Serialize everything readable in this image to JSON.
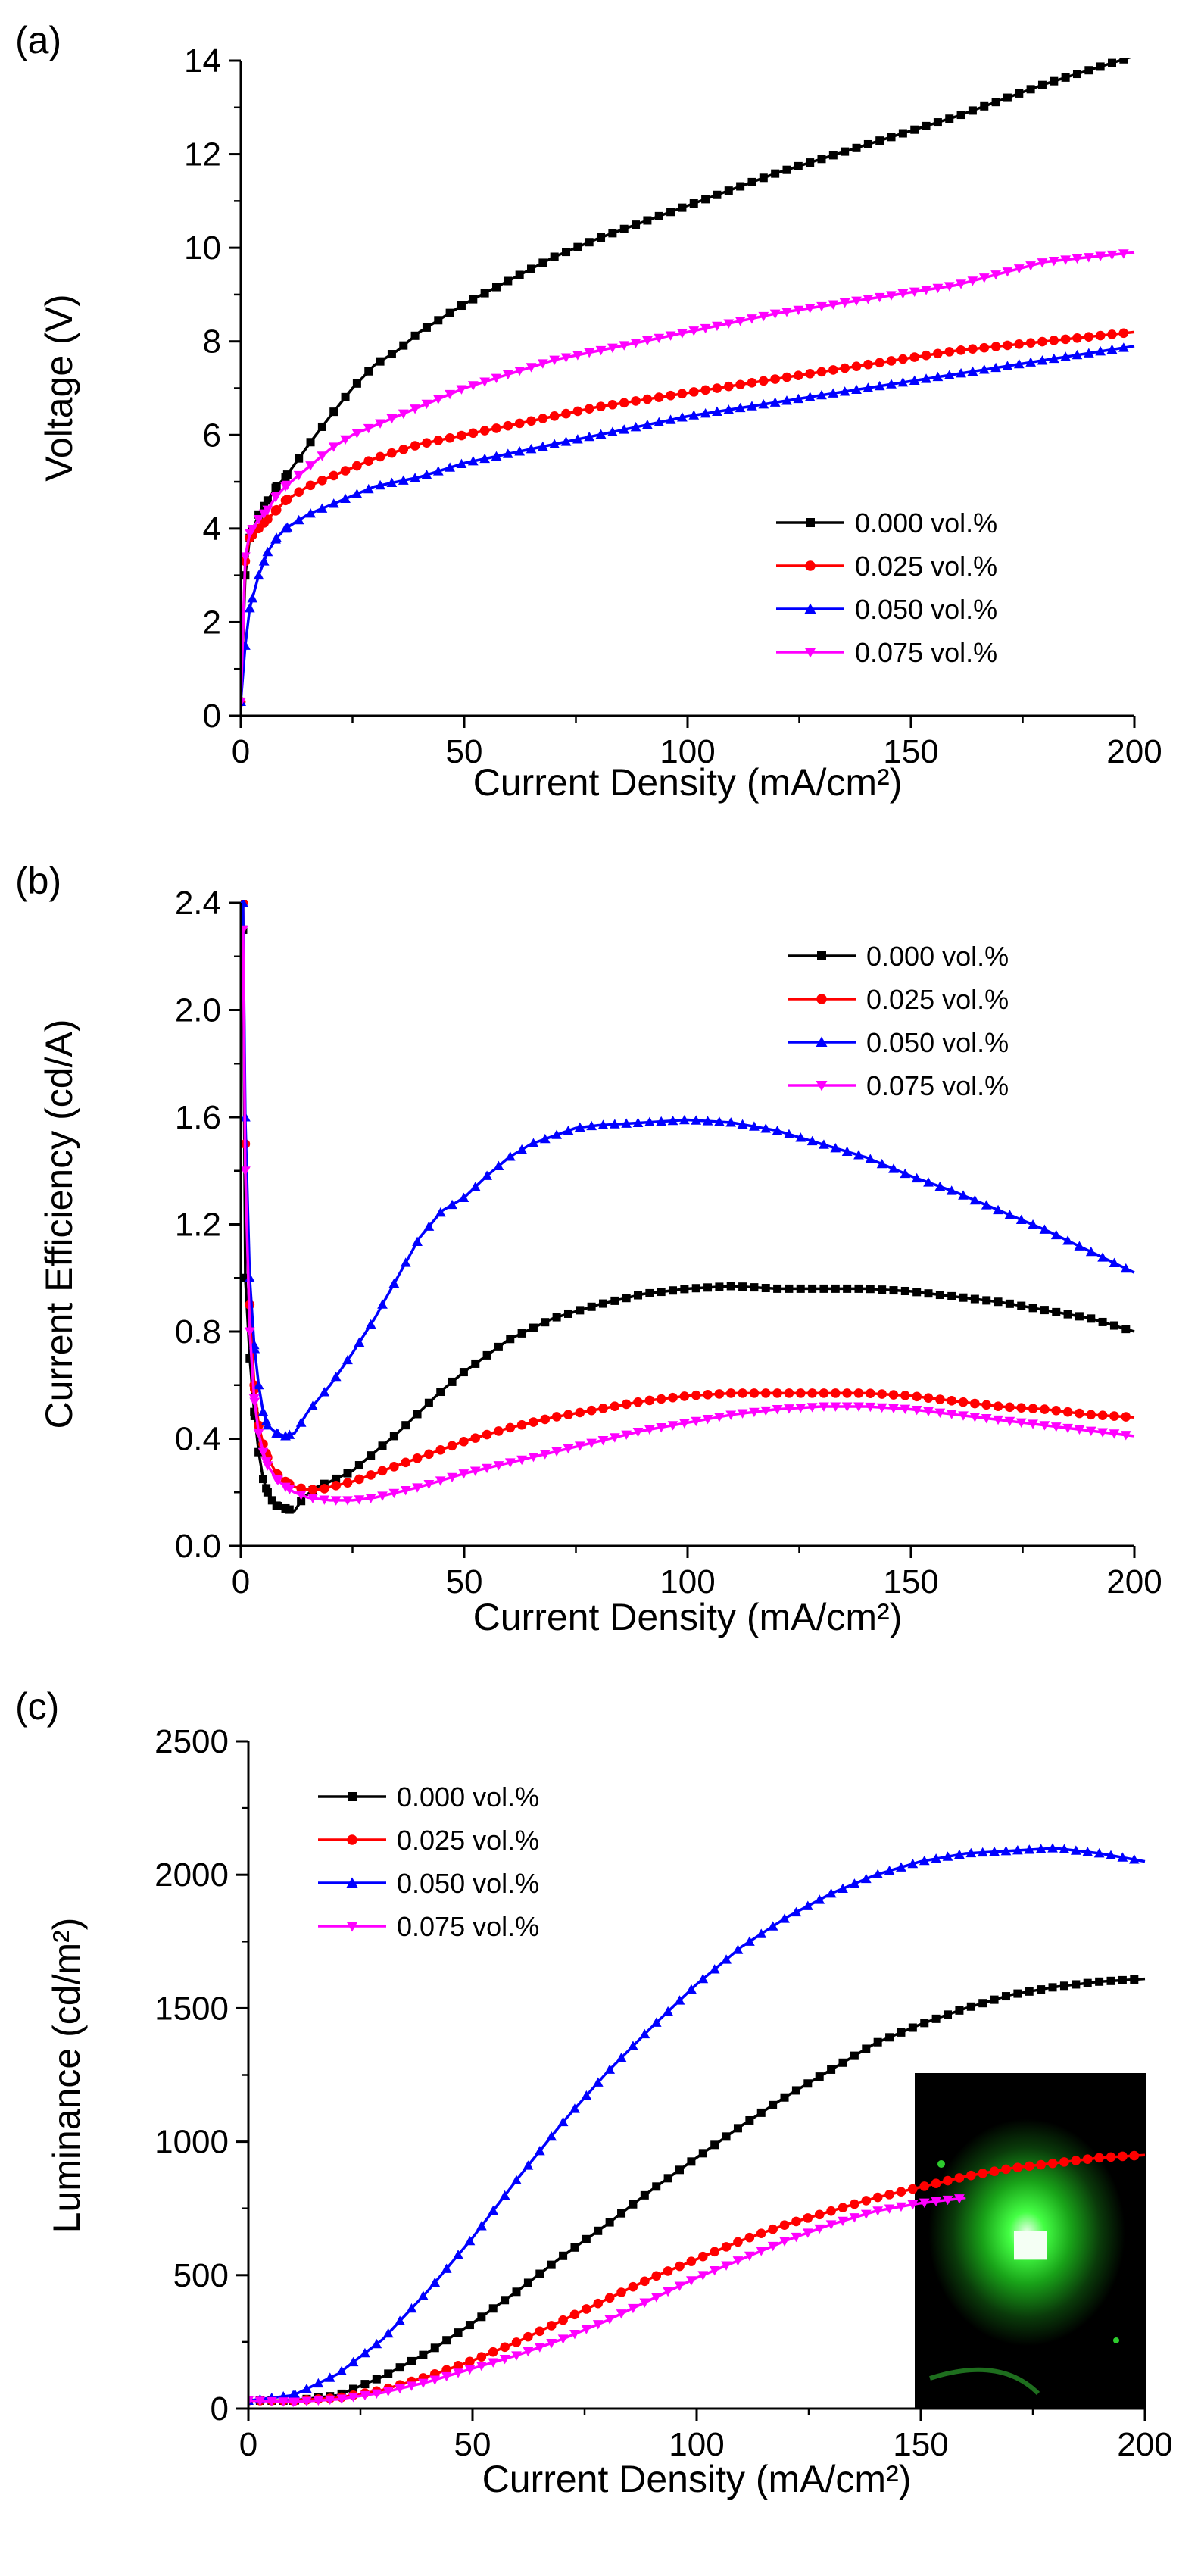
{
  "figure": {
    "inset_photo": "green-electroluminescence-device-photo"
  },
  "chart_data": [
    {
      "panel_label": "(a)",
      "type": "line",
      "xlabel": "Current Density (mA/cm²)",
      "ylabel": "Voltage (V)",
      "xlim": [
        0,
        200
      ],
      "ylim": [
        0,
        14
      ],
      "x_ticks": [
        "0",
        "50",
        "100",
        "150",
        "200"
      ],
      "y_ticks": [
        "0",
        "2",
        "4",
        "6",
        "8",
        "10",
        "12",
        "14"
      ],
      "legend_position": "bottom-right",
      "grid": false,
      "series": [
        {
          "name": "0.000 vol.%",
          "color": "#000000",
          "marker": "square",
          "x": [
            0,
            1,
            2,
            4,
            6,
            8,
            10,
            13,
            16,
            20,
            25,
            30,
            35,
            40,
            50,
            60,
            70,
            80,
            100,
            120,
            140,
            160,
            180,
            200
          ],
          "y": [
            0.3,
            3.0,
            3.8,
            4.3,
            4.6,
            4.9,
            5.1,
            5.5,
            5.9,
            6.4,
            7.0,
            7.5,
            7.8,
            8.2,
            8.8,
            9.3,
            9.8,
            10.2,
            10.9,
            11.6,
            12.2,
            12.8,
            13.5,
            14.1
          ]
        },
        {
          "name": "0.025 vol.%",
          "color": "#ff0000",
          "marker": "circle",
          "x": [
            0,
            1,
            2,
            4,
            6,
            8,
            10,
            15,
            20,
            25,
            30,
            40,
            50,
            60,
            70,
            80,
            100,
            120,
            140,
            160,
            180,
            200
          ],
          "y": [
            0.3,
            3.3,
            3.8,
            4.0,
            4.2,
            4.4,
            4.6,
            4.9,
            5.1,
            5.3,
            5.5,
            5.8,
            6.0,
            6.2,
            6.4,
            6.6,
            6.9,
            7.2,
            7.5,
            7.8,
            8.0,
            8.2
          ]
        },
        {
          "name": "0.050 vol.%",
          "color": "#0000ff",
          "marker": "triangle-up",
          "x": [
            0,
            1,
            2,
            4,
            6,
            8,
            10,
            15,
            20,
            25,
            30,
            40,
            50,
            60,
            70,
            80,
            100,
            120,
            140,
            160,
            180,
            200
          ],
          "y": [
            0.3,
            1.5,
            2.3,
            3.0,
            3.5,
            3.8,
            4.0,
            4.3,
            4.5,
            4.7,
            4.9,
            5.1,
            5.4,
            5.6,
            5.8,
            6.0,
            6.4,
            6.7,
            7.0,
            7.3,
            7.6,
            7.9
          ]
        },
        {
          "name": "0.075 vol.%",
          "color": "#ff00ff",
          "marker": "triangle-down",
          "x": [
            0,
            1,
            2,
            4,
            6,
            8,
            10,
            15,
            20,
            25,
            30,
            40,
            50,
            60,
            70,
            80,
            100,
            120,
            140,
            160,
            180,
            200
          ],
          "y": [
            0.3,
            3.4,
            3.9,
            4.2,
            4.4,
            4.7,
            4.9,
            5.3,
            5.7,
            6.0,
            6.2,
            6.6,
            7.0,
            7.3,
            7.6,
            7.8,
            8.2,
            8.6,
            8.9,
            9.2,
            9.7,
            9.9
          ]
        }
      ]
    },
    {
      "panel_label": "(b)",
      "type": "line",
      "xlabel": "Current Density (mA/cm²)",
      "ylabel": "Current Efficiency (cd/A)",
      "xlim": [
        0,
        200
      ],
      "ylim": [
        0,
        2.4
      ],
      "x_ticks": [
        "0",
        "50",
        "100",
        "150",
        "200"
      ],
      "y_ticks": [
        "0.0",
        "0.4",
        "0.8",
        "1.2",
        "1.6",
        "2.0",
        "2.4"
      ],
      "legend_position": "top-right",
      "grid": false,
      "series": [
        {
          "name": "0.000 vol.%",
          "color": "#000000",
          "marker": "square",
          "x": [
            0.5,
            1,
            2,
            3,
            4,
            5,
            6,
            7,
            8,
            10,
            12,
            14,
            17,
            20,
            25,
            30,
            35,
            40,
            45,
            50,
            60,
            70,
            80,
            90,
            100,
            110,
            120,
            130,
            140,
            150,
            160,
            170,
            180,
            190,
            200
          ],
          "y": [
            2.3,
            1.0,
            0.7,
            0.5,
            0.35,
            0.25,
            0.2,
            0.17,
            0.15,
            0.14,
            0.13,
            0.18,
            0.22,
            0.24,
            0.28,
            0.35,
            0.42,
            0.5,
            0.58,
            0.65,
            0.77,
            0.85,
            0.9,
            0.94,
            0.96,
            0.97,
            0.96,
            0.96,
            0.96,
            0.95,
            0.93,
            0.91,
            0.88,
            0.85,
            0.8
          ]
        },
        {
          "name": "0.025 vol.%",
          "color": "#ff0000",
          "marker": "circle",
          "x": [
            0.5,
            1,
            2,
            3,
            4,
            5,
            6,
            8,
            10,
            12,
            15,
            18,
            20,
            25,
            30,
            40,
            50,
            60,
            70,
            80,
            90,
            100,
            110,
            120,
            130,
            140,
            150,
            160,
            170,
            180,
            190,
            200
          ],
          "y": [
            2.4,
            1.5,
            0.9,
            0.6,
            0.45,
            0.38,
            0.33,
            0.27,
            0.24,
            0.22,
            0.21,
            0.21,
            0.22,
            0.24,
            0.27,
            0.33,
            0.39,
            0.44,
            0.48,
            0.51,
            0.54,
            0.56,
            0.57,
            0.57,
            0.57,
            0.57,
            0.56,
            0.54,
            0.52,
            0.51,
            0.49,
            0.48
          ]
        },
        {
          "name": "0.050 vol.%",
          "color": "#0000ff",
          "marker": "triangle-up",
          "x": [
            0.5,
            1,
            2,
            3,
            4,
            5,
            6,
            8,
            10,
            12,
            15,
            20,
            25,
            30,
            35,
            40,
            45,
            50,
            55,
            60,
            65,
            70,
            75,
            80,
            90,
            100,
            110,
            120,
            130,
            140,
            150,
            160,
            170,
            180,
            190,
            200
          ],
          "y": [
            2.4,
            1.6,
            1.0,
            0.75,
            0.6,
            0.5,
            0.45,
            0.42,
            0.41,
            0.42,
            0.5,
            0.6,
            0.72,
            0.85,
            1.0,
            1.15,
            1.25,
            1.3,
            1.38,
            1.45,
            1.5,
            1.53,
            1.56,
            1.57,
            1.58,
            1.59,
            1.58,
            1.55,
            1.5,
            1.45,
            1.38,
            1.32,
            1.25,
            1.18,
            1.1,
            1.02
          ]
        },
        {
          "name": "0.075 vol.%",
          "color": "#ff00ff",
          "marker": "triangle-down",
          "x": [
            0.5,
            1,
            2,
            3,
            4,
            5,
            6,
            8,
            10,
            12,
            15,
            20,
            25,
            30,
            35,
            40,
            50,
            60,
            70,
            80,
            90,
            100,
            110,
            120,
            130,
            140,
            150,
            160,
            170,
            180,
            190,
            200
          ],
          "y": [
            2.3,
            1.4,
            0.8,
            0.55,
            0.42,
            0.35,
            0.3,
            0.25,
            0.22,
            0.2,
            0.18,
            0.17,
            0.17,
            0.18,
            0.2,
            0.22,
            0.27,
            0.31,
            0.35,
            0.39,
            0.43,
            0.46,
            0.49,
            0.51,
            0.52,
            0.52,
            0.51,
            0.49,
            0.47,
            0.45,
            0.43,
            0.41
          ]
        }
      ]
    },
    {
      "panel_label": "(c)",
      "type": "line",
      "xlabel": "Current Density (mA/cm²)",
      "ylabel": "Luminance (cd/m²)",
      "xlim": [
        0,
        200
      ],
      "ylim": [
        0,
        2500
      ],
      "x_ticks": [
        "0",
        "50",
        "100",
        "150",
        "200"
      ],
      "y_ticks": [
        "0",
        "500",
        "1000",
        "1500",
        "2000",
        "2500"
      ],
      "legend_position": "top-left",
      "grid": false,
      "series": [
        {
          "name": "0.000 vol.%",
          "color": "#000000",
          "marker": "square",
          "x": [
            0,
            10,
            20,
            30,
            40,
            50,
            60,
            70,
            80,
            90,
            100,
            110,
            120,
            130,
            140,
            150,
            160,
            170,
            180,
            190,
            200
          ],
          "y": [
            30,
            30,
            50,
            120,
            210,
            320,
            440,
            570,
            690,
            820,
            940,
            1060,
            1170,
            1270,
            1370,
            1440,
            1500,
            1550,
            1580,
            1600,
            1610
          ]
        },
        {
          "name": "0.025 vol.%",
          "color": "#ff0000",
          "marker": "circle",
          "x": [
            0,
            10,
            20,
            30,
            40,
            50,
            60,
            70,
            80,
            90,
            100,
            110,
            120,
            130,
            140,
            150,
            160,
            170,
            180,
            190,
            200
          ],
          "y": [
            30,
            30,
            40,
            70,
            120,
            180,
            250,
            330,
            410,
            490,
            560,
            630,
            690,
            740,
            790,
            830,
            870,
            900,
            920,
            940,
            950
          ]
        },
        {
          "name": "0.050 vol.%",
          "color": "#0000ff",
          "marker": "triangle-up",
          "x": [
            0,
            10,
            20,
            30,
            40,
            50,
            60,
            70,
            80,
            90,
            100,
            110,
            120,
            130,
            140,
            150,
            160,
            170,
            180,
            190,
            200
          ],
          "y": [
            30,
            50,
            130,
            260,
            440,
            640,
            860,
            1070,
            1260,
            1430,
            1590,
            1730,
            1840,
            1930,
            2000,
            2050,
            2080,
            2090,
            2100,
            2080,
            2050
          ]
        },
        {
          "name": "0.075 vol.%",
          "color": "#ff00ff",
          "marker": "triangle-down",
          "x": [
            0,
            10,
            20,
            30,
            40,
            50,
            60,
            70,
            80,
            90,
            100,
            110,
            120,
            130,
            140,
            150,
            160
          ],
          "y": [
            30,
            25,
            35,
            60,
            100,
            150,
            200,
            260,
            330,
            410,
            490,
            560,
            630,
            690,
            740,
            770,
            790
          ]
        }
      ]
    }
  ]
}
